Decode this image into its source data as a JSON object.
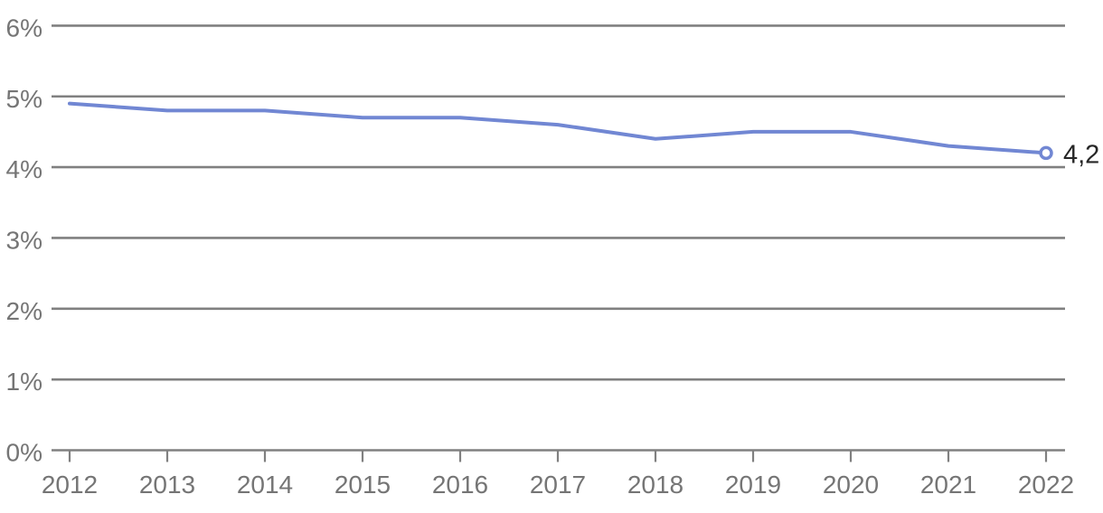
{
  "chart_data": {
    "type": "line",
    "title": "",
    "xlabel": "",
    "ylabel": "",
    "categories": [
      "2012",
      "2013",
      "2014",
      "2015",
      "2016",
      "2017",
      "2018",
      "2019",
      "2020",
      "2021",
      "2022"
    ],
    "values": [
      4.9,
      4.8,
      4.8,
      4.7,
      4.7,
      4.6,
      4.4,
      4.5,
      4.5,
      4.3,
      4.2
    ],
    "unit": "%",
    "ylim": [
      0,
      6
    ],
    "y_tick_step": 1,
    "y_tick_labels": [
      "0%",
      "1%",
      "2%",
      "3%",
      "4%",
      "5%",
      "6%"
    ],
    "grid": "horizontal",
    "legend": "none",
    "end_point": {
      "category": "2022",
      "value": 4.2,
      "label": "4,2",
      "marker": "open-circle"
    }
  },
  "colors": {
    "background": "#ffffff",
    "line": "#7187d3",
    "grid": "#808080",
    "axis_text": "#757575",
    "end_label_text": "#262626",
    "marker_fill": "#ffffff"
  }
}
